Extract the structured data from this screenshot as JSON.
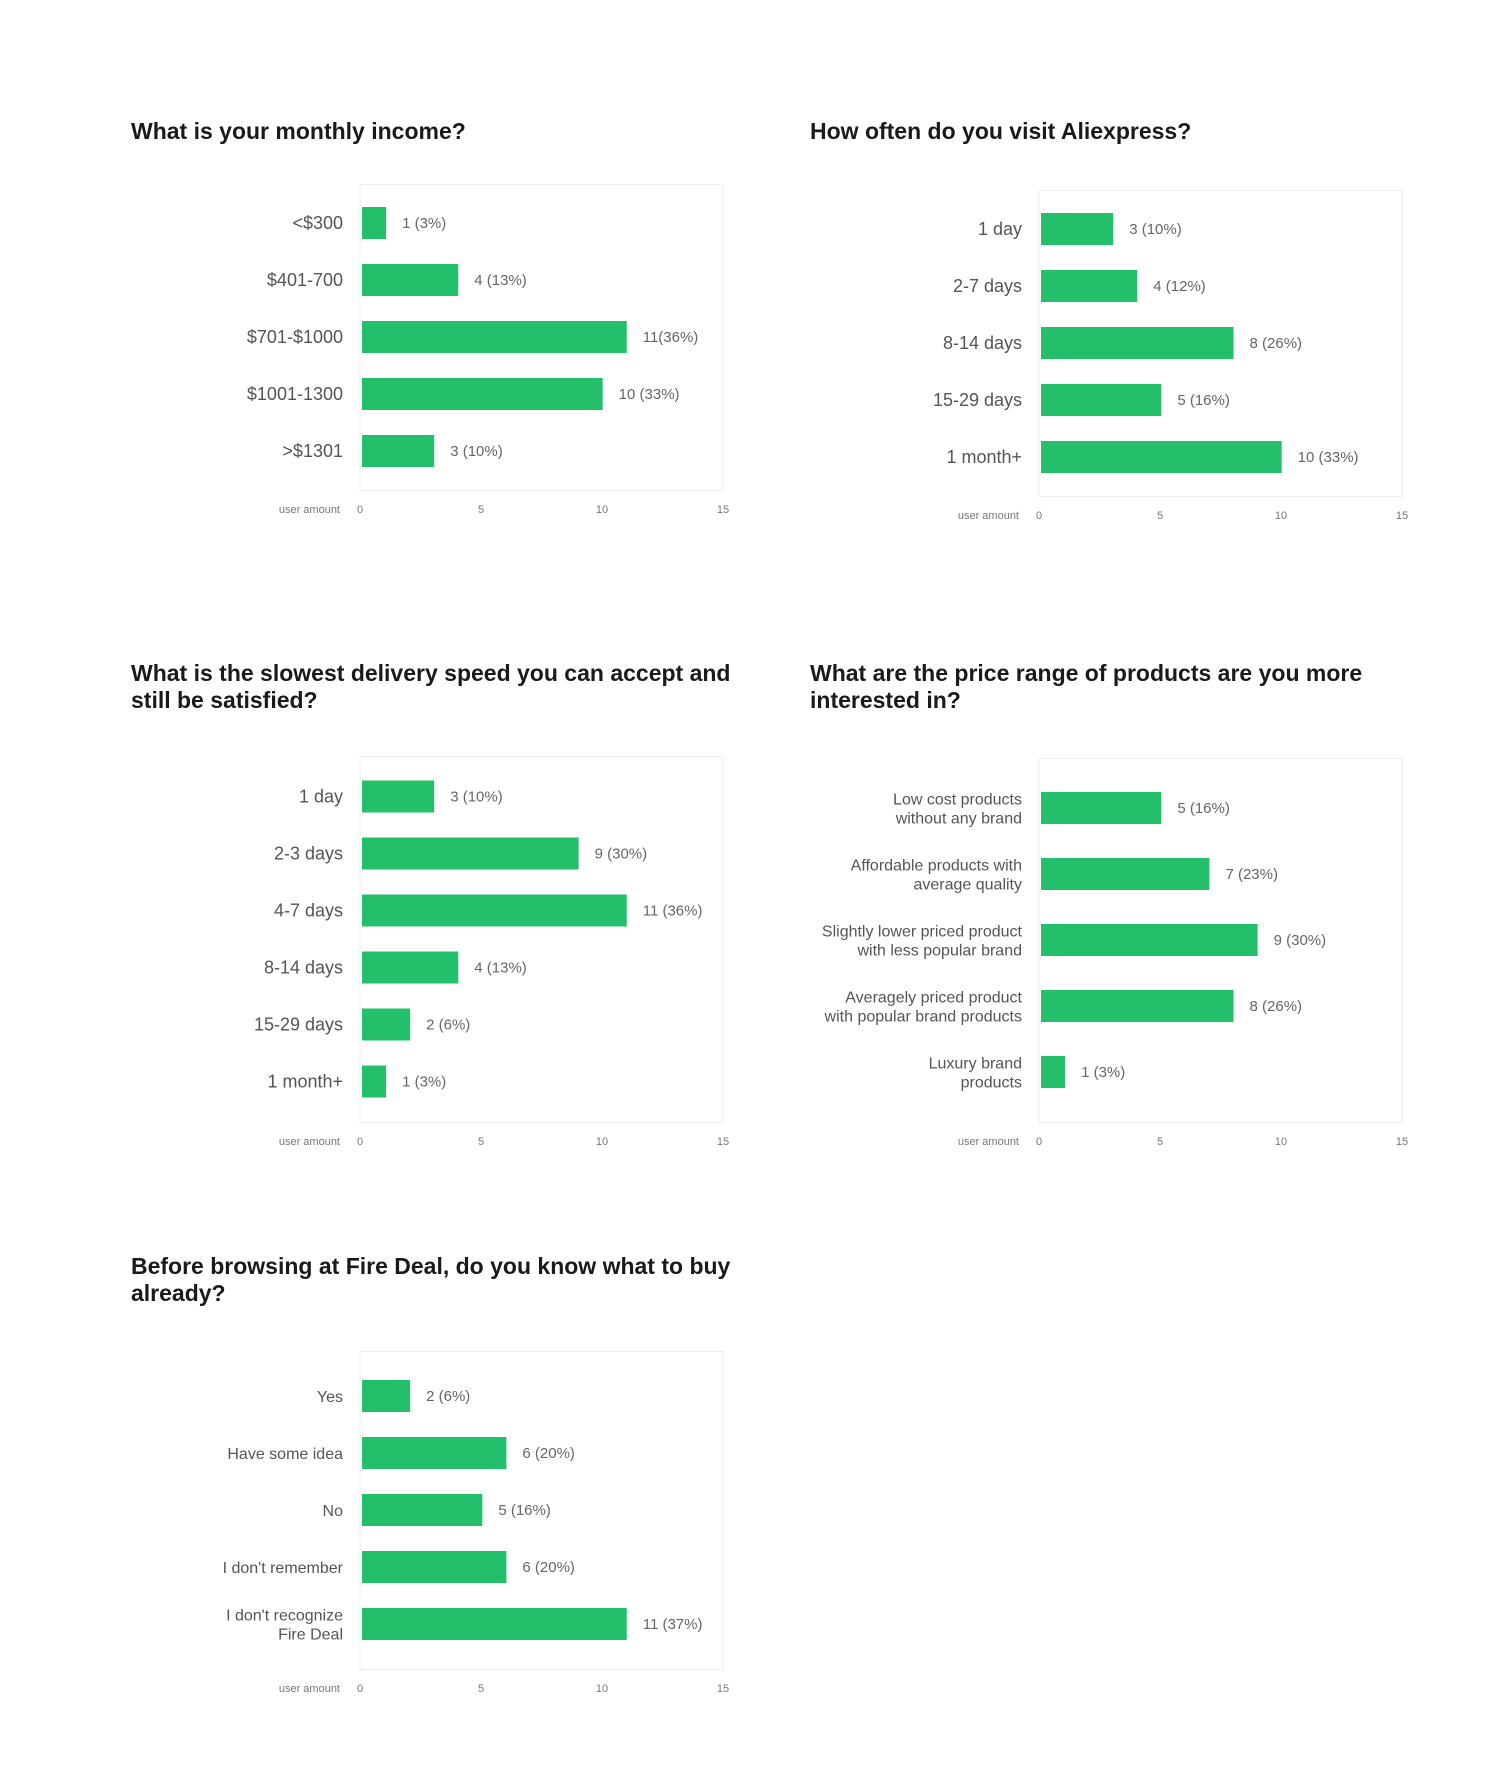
{
  "colors": {
    "bar": "#24bf6b",
    "frame": "#eeeeee",
    "background": "#ffffff"
  },
  "chart_data": [
    {
      "type": "bar",
      "orientation": "horizontal",
      "title": "What is your monthly income?",
      "categories": [
        [
          "<$300"
        ],
        [
          "$401-700"
        ],
        [
          "$701-$1000"
        ],
        [
          "$1001-1300"
        ],
        [
          ">$1301"
        ]
      ],
      "values": [
        1,
        4,
        11,
        10,
        3
      ],
      "value_labels": [
        "1 (3%)",
        "4 (13%)",
        "11(36%)",
        "10 (33%)",
        "3 (10%)"
      ],
      "xlabel": "user amount",
      "xlim": [
        0,
        15
      ],
      "xticks": [
        "0",
        "5",
        "10",
        "15"
      ]
    },
    {
      "type": "bar",
      "orientation": "horizontal",
      "title": "How often do you visit Aliexpress?",
      "categories": [
        [
          "1 day"
        ],
        [
          "2-7 days"
        ],
        [
          "8-14 days"
        ],
        [
          "15-29 days"
        ],
        [
          "1 month+"
        ]
      ],
      "values": [
        3,
        4,
        8,
        5,
        10
      ],
      "value_labels": [
        "3 (10%)",
        "4 (12%)",
        "8 (26%)",
        "5 (16%)",
        "10 (33%)"
      ],
      "xlabel": "user amount",
      "xlim": [
        0,
        15
      ],
      "xticks": [
        "0",
        "5",
        "10",
        "15"
      ]
    },
    {
      "type": "bar",
      "orientation": "horizontal",
      "title": "What is the slowest delivery speed you can accept and still be satisfied?",
      "categories": [
        [
          "1 day"
        ],
        [
          "2-3 days"
        ],
        [
          "4-7 days"
        ],
        [
          "8-14 days"
        ],
        [
          "15-29 days"
        ],
        [
          "1 month+"
        ]
      ],
      "values": [
        3,
        9,
        11,
        4,
        2,
        1
      ],
      "value_labels": [
        "3 (10%)",
        "9 (30%)",
        "11 (36%)",
        "4 (13%)",
        "2 (6%)",
        "1 (3%)"
      ],
      "xlabel": "user amount",
      "xlim": [
        0,
        15
      ],
      "xticks": [
        "0",
        "5",
        "10",
        "15"
      ]
    },
    {
      "type": "bar",
      "orientation": "horizontal",
      "title": "What are the price range of products are you more interested in?",
      "categories": [
        [
          "Low cost products",
          "without any brand"
        ],
        [
          "Affordable products with",
          "average quality"
        ],
        [
          "Slightly lower priced product",
          "with less popular brand"
        ],
        [
          "Averagely priced product",
          "with popular brand products"
        ],
        [
          "Luxury brand",
          "products"
        ]
      ],
      "values": [
        5,
        7,
        9,
        8,
        1
      ],
      "value_labels": [
        "5 (16%)",
        "7 (23%)",
        "9 (30%)",
        "8 (26%)",
        "1 (3%)"
      ],
      "xlabel": "user amount",
      "xlim": [
        0,
        15
      ],
      "xticks": [
        "0",
        "5",
        "10",
        "15"
      ]
    },
    {
      "type": "bar",
      "orientation": "horizontal",
      "title": "Before browsing at Fire Deal, do you know what to buy already?",
      "categories": [
        [
          "Yes"
        ],
        [
          "Have some idea"
        ],
        [
          "No"
        ],
        [
          "I don't remember"
        ],
        [
          "I don't recognize",
          "Fire Deal"
        ]
      ],
      "values": [
        2,
        6,
        5,
        6,
        11
      ],
      "value_labels": [
        "2 (6%)",
        "6 (20%)",
        "5 (16%)",
        "6 (20%)",
        "11 (37%)"
      ],
      "xlabel": "user amount",
      "xlim": [
        0,
        15
      ],
      "xticks": [
        "0",
        "5",
        "10",
        "15"
      ]
    }
  ]
}
